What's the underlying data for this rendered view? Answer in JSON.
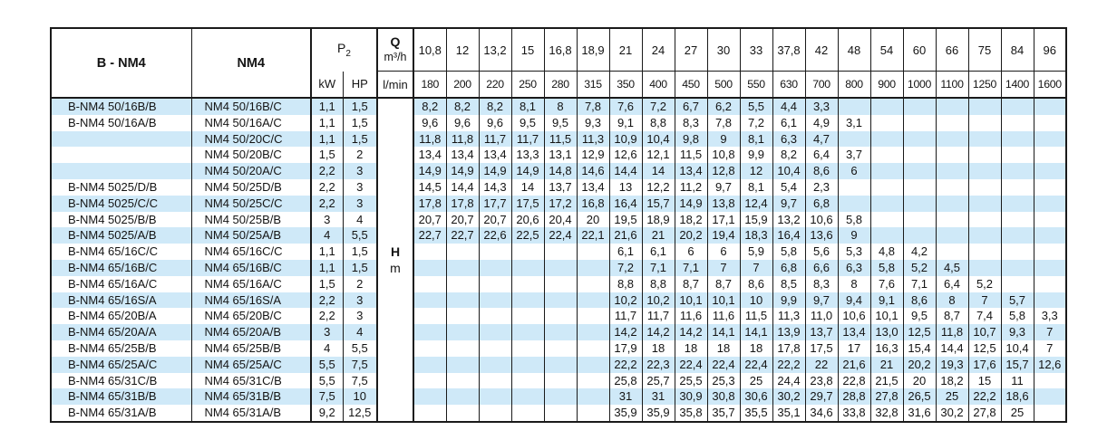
{
  "colors": {
    "row_band": "#cfe9f8",
    "border": "#1a1a1a"
  },
  "table": {
    "col1_header": "B - NM4",
    "col2_header": "NM4",
    "p2_label": "P",
    "p2_sub": "2",
    "kw_label": "kW",
    "hp_label": "HP",
    "q_label": "Q",
    "q_unit": "m³/h",
    "lmin_label": "l/min",
    "h_label": "H",
    "h_unit": "m",
    "flow_m3h": [
      "10,8",
      "12",
      "13,2",
      "15",
      "16,8",
      "18,9",
      "21",
      "24",
      "27",
      "30",
      "33",
      "37,8",
      "42",
      "48",
      "54",
      "60",
      "66",
      "75",
      "84",
      "96"
    ],
    "flow_lmin": [
      "180",
      "200",
      "220",
      "250",
      "280",
      "315",
      "350",
      "400",
      "450",
      "500",
      "550",
      "630",
      "700",
      "800",
      "900",
      "1000",
      "1100",
      "1250",
      "1400",
      "1600"
    ],
    "rows": [
      {
        "b_nm4": "B-NM4 50/16B/B",
        "nm4": "NM4 50/16B/C",
        "kw": "1,1",
        "hp": "1,5",
        "h": [
          "8,2",
          "8,2",
          "8,2",
          "8,1",
          "8",
          "7,8",
          "7,6",
          "7,2",
          "6,7",
          "6,2",
          "5,5",
          "4,4",
          "3,3",
          "",
          "",
          "",
          "",
          "",
          "",
          ""
        ]
      },
      {
        "b_nm4": "B-NM4 50/16A/B",
        "nm4": "NM4 50/16A/C",
        "kw": "1,1",
        "hp": "1,5",
        "h": [
          "9,6",
          "9,6",
          "9,6",
          "9,5",
          "9,5",
          "9,3",
          "9,1",
          "8,8",
          "8,3",
          "7,8",
          "7,2",
          "6,1",
          "4,9",
          "3,1",
          "",
          "",
          "",
          "",
          "",
          ""
        ]
      },
      {
        "b_nm4": "",
        "nm4": "NM4 50/20C/C",
        "kw": "1,1",
        "hp": "1,5",
        "h": [
          "11,8",
          "11,8",
          "11,7",
          "11,7",
          "11,5",
          "11,3",
          "10,9",
          "10,4",
          "9,8",
          "9",
          "8,1",
          "6,3",
          "4,7",
          "",
          "",
          "",
          "",
          "",
          "",
          ""
        ]
      },
      {
        "b_nm4": "",
        "nm4": "NM4 50/20B/C",
        "kw": "1,5",
        "hp": "2",
        "h": [
          "13,4",
          "13,4",
          "13,4",
          "13,3",
          "13,1",
          "12,9",
          "12,6",
          "12,1",
          "11,5",
          "10,8",
          "9,9",
          "8,2",
          "6,4",
          "3,7",
          "",
          "",
          "",
          "",
          "",
          ""
        ]
      },
      {
        "b_nm4": "",
        "nm4": "NM4 50/20A/C",
        "kw": "2,2",
        "hp": "3",
        "h": [
          "14,9",
          "14,9",
          "14,9",
          "14,9",
          "14,8",
          "14,6",
          "14,4",
          "14",
          "13,4",
          "12,8",
          "12",
          "10,4",
          "8,6",
          "6",
          "",
          "",
          "",
          "",
          "",
          ""
        ]
      },
      {
        "b_nm4": "B-NM4 5025/D/B",
        "nm4": "NM4 50/25D/B",
        "kw": "2,2",
        "hp": "3",
        "h": [
          "14,5",
          "14,4",
          "14,3",
          "14",
          "13,7",
          "13,4",
          "13",
          "12,2",
          "11,2",
          "9,7",
          "8,1",
          "5,4",
          "2,3",
          "",
          "",
          "",
          "",
          "",
          "",
          ""
        ]
      },
      {
        "b_nm4": "B-NM4 5025/C/C",
        "nm4": "NM4 50/25C/C",
        "kw": "2,2",
        "hp": "3",
        "h": [
          "17,8",
          "17,8",
          "17,7",
          "17,5",
          "17,2",
          "16,8",
          "16,4",
          "15,7",
          "14,9",
          "13,8",
          "12,4",
          "9,7",
          "6,8",
          "",
          "",
          "",
          "",
          "",
          "",
          ""
        ]
      },
      {
        "b_nm4": "B-NM4 5025/B/B",
        "nm4": "NM4 50/25B/B",
        "kw": "3",
        "hp": "4",
        "h": [
          "20,7",
          "20,7",
          "20,7",
          "20,6",
          "20,4",
          "20",
          "19,5",
          "18,9",
          "18,2",
          "17,1",
          "15,9",
          "13,2",
          "10,6",
          "5,8",
          "",
          "",
          "",
          "",
          "",
          ""
        ]
      },
      {
        "b_nm4": "B-NM4 5025/A/B",
        "nm4": "NM4 50/25A/B",
        "kw": "4",
        "hp": "5,5",
        "h": [
          "22,7",
          "22,7",
          "22,6",
          "22,5",
          "22,4",
          "22,1",
          "21,6",
          "21",
          "20,2",
          "19,4",
          "18,3",
          "16,4",
          "13,6",
          "9",
          "",
          "",
          "",
          "",
          "",
          ""
        ]
      },
      {
        "b_nm4": "B-NM4 65/16C/C",
        "nm4": "NM4 65/16C/C",
        "kw": "1,1",
        "hp": "1,5",
        "h": [
          "",
          "",
          "",
          "",
          "",
          "",
          "6,1",
          "6,1",
          "6",
          "6",
          "5,9",
          "5,8",
          "5,6",
          "5,3",
          "4,8",
          "4,2",
          "",
          "",
          "",
          ""
        ]
      },
      {
        "b_nm4": "B-NM4 65/16B/C",
        "nm4": "NM4 65/16B/C",
        "kw": "1,1",
        "hp": "1,5",
        "h": [
          "",
          "",
          "",
          "",
          "",
          "",
          "7,2",
          "7,1",
          "7,1",
          "7",
          "7",
          "6,8",
          "6,6",
          "6,3",
          "5,8",
          "5,2",
          "4,5",
          "",
          "",
          ""
        ]
      },
      {
        "b_nm4": "B-NM4 65/16A/C",
        "nm4": "NM4 65/16A/C",
        "kw": "1,5",
        "hp": "2",
        "h": [
          "",
          "",
          "",
          "",
          "",
          "",
          "8,8",
          "8,8",
          "8,7",
          "8,7",
          "8,6",
          "8,5",
          "8,3",
          "8",
          "7,6",
          "7,1",
          "6,4",
          "5,2",
          "",
          ""
        ]
      },
      {
        "b_nm4": "B-NM4 65/16S/A",
        "nm4": "NM4 65/16S/A",
        "kw": "2,2",
        "hp": "3",
        "h": [
          "",
          "",
          "",
          "",
          "",
          "",
          "10,2",
          "10,2",
          "10,1",
          "10,1",
          "10",
          "9,9",
          "9,7",
          "9,4",
          "9,1",
          "8,6",
          "8",
          "7",
          "5,7",
          ""
        ]
      },
      {
        "b_nm4": "B-NM4 65/20B/A",
        "nm4": "NM4 65/20B/C",
        "kw": "2,2",
        "hp": "3",
        "h": [
          "",
          "",
          "",
          "",
          "",
          "",
          "11,7",
          "11,7",
          "11,6",
          "11,6",
          "11,5",
          "11,3",
          "11,0",
          "10,6",
          "10,1",
          "9,5",
          "8,7",
          "7,4",
          "5,8",
          "3,3"
        ]
      },
      {
        "b_nm4": "B-NM4 65/20A/A",
        "nm4": "NM4 65/20A/B",
        "kw": "3",
        "hp": "4",
        "h": [
          "",
          "",
          "",
          "",
          "",
          "",
          "14,2",
          "14,2",
          "14,2",
          "14,1",
          "14,1",
          "13,9",
          "13,7",
          "13,4",
          "13,0",
          "12,5",
          "11,8",
          "10,7",
          "9,3",
          "7"
        ]
      },
      {
        "b_nm4": "B-NM4 65/25B/B",
        "nm4": "NM4 65/25B/B",
        "kw": "4",
        "hp": "5,5",
        "h": [
          "",
          "",
          "",
          "",
          "",
          "",
          "17,9",
          "18",
          "18",
          "18",
          "18",
          "17,8",
          "17,5",
          "17",
          "16,3",
          "15,4",
          "14,4",
          "12,5",
          "10,4",
          "7"
        ]
      },
      {
        "b_nm4": "B-NM4 65/25A/C",
        "nm4": "NM4 65/25A/C",
        "kw": "5,5",
        "hp": "7,5",
        "h": [
          "",
          "",
          "",
          "",
          "",
          "",
          "22,2",
          "22,3",
          "22,4",
          "22,4",
          "22,4",
          "22,2",
          "22",
          "21,6",
          "21",
          "20,2",
          "19,3",
          "17,6",
          "15,7",
          "12,6"
        ]
      },
      {
        "b_nm4": "B-NM4 65/31C/B",
        "nm4": "NM4 65/31C/B",
        "kw": "5,5",
        "hp": "7,5",
        "h": [
          "",
          "",
          "",
          "",
          "",
          "",
          "25,8",
          "25,7",
          "25,5",
          "25,3",
          "25",
          "24,4",
          "23,8",
          "22,8",
          "21,5",
          "20",
          "18,2",
          "15",
          "11",
          ""
        ]
      },
      {
        "b_nm4": "B-NM4 65/31B/B",
        "nm4": "NM4 65/31B/B",
        "kw": "7,5",
        "hp": "10",
        "h": [
          "",
          "",
          "",
          "",
          "",
          "",
          "31",
          "31",
          "30,9",
          "30,8",
          "30,6",
          "30,2",
          "29,7",
          "28,8",
          "27,8",
          "26,5",
          "25",
          "22,2",
          "18,6",
          ""
        ]
      },
      {
        "b_nm4": "B-NM4 65/31A/B",
        "nm4": "NM4 65/31A/B",
        "kw": "9,2",
        "hp": "12,5",
        "h": [
          "",
          "",
          "",
          "",
          "",
          "",
          "35,9",
          "35,9",
          "35,8",
          "35,7",
          "35,5",
          "35,1",
          "34,6",
          "33,8",
          "32,8",
          "31,6",
          "30,2",
          "27,8",
          "25",
          ""
        ]
      }
    ]
  }
}
